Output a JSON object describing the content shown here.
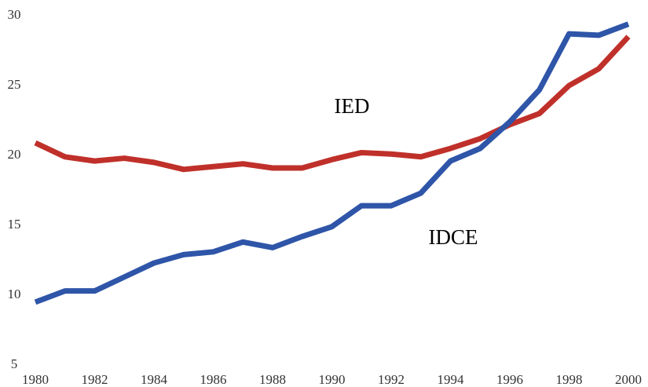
{
  "chart_data": {
    "type": "line",
    "x": [
      1980,
      1981,
      1982,
      1983,
      1984,
      1985,
      1986,
      1987,
      1988,
      1989,
      1990,
      1991,
      1992,
      1993,
      1994,
      1995,
      1996,
      1997,
      1998,
      1999,
      2000
    ],
    "series": [
      {
        "name": "IED",
        "color": "#c0302a",
        "values": [
          20.9,
          19.9,
          19.6,
          19.8,
          19.5,
          19.0,
          19.2,
          19.4,
          19.1,
          19.1,
          19.7,
          20.2,
          20.1,
          19.9,
          20.5,
          21.2,
          22.2,
          23.0,
          25.0,
          26.2,
          28.5
        ]
      },
      {
        "name": "IDCE",
        "color": "#2e55a8",
        "values": [
          9.5,
          10.3,
          10.3,
          11.3,
          12.3,
          12.9,
          13.1,
          13.8,
          13.4,
          14.2,
          14.9,
          16.4,
          16.4,
          17.3,
          19.6,
          20.5,
          22.4,
          24.7,
          28.7,
          28.6,
          29.4
        ]
      }
    ],
    "xlim": [
      1980,
      2000
    ],
    "xticks": [
      1980,
      1982,
      1984,
      1986,
      1988,
      1990,
      1992,
      1994,
      1996,
      1998,
      2000
    ],
    "ylim": [
      5,
      30
    ],
    "yticks": [
      5,
      10,
      15,
      20,
      25,
      30
    ],
    "grid": false
  }
}
